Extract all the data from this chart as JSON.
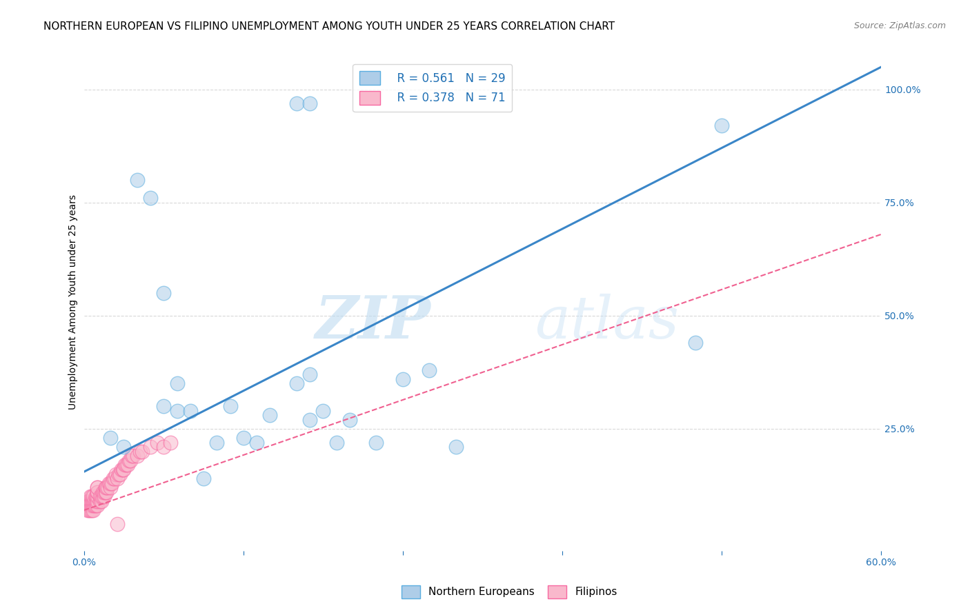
{
  "title": "NORTHERN EUROPEAN VS FILIPINO UNEMPLOYMENT AMONG YOUTH UNDER 25 YEARS CORRELATION CHART",
  "source": "Source: ZipAtlas.com",
  "xlabel": "",
  "ylabel": "Unemployment Among Youth under 25 years",
  "xlim": [
    0.0,
    0.6
  ],
  "ylim": [
    -0.02,
    1.08
  ],
  "xticks": [
    0.0,
    0.12,
    0.24,
    0.36,
    0.48,
    0.6
  ],
  "xticklabels": [
    "0.0%",
    "",
    "",
    "",
    "",
    "60.0%"
  ],
  "yticks_right": [
    0.0,
    0.25,
    0.5,
    0.75,
    1.0
  ],
  "yticklabels_right": [
    "",
    "25.0%",
    "50.0%",
    "75.0%",
    "100.0%"
  ],
  "legend_r_blue": "R = 0.561",
  "legend_n_blue": "N = 29",
  "legend_r_pink": "R = 0.378",
  "legend_n_pink": "N = 71",
  "blue_color": "#aecde8",
  "pink_color": "#f9b8cc",
  "blue_edge_color": "#5baee0",
  "pink_edge_color": "#f768a1",
  "blue_line_color": "#3a86c8",
  "pink_line_color": "#f06090",
  "watermark_zip": "ZIP",
  "watermark_atlas": "atlas",
  "blue_scatter_x": [
    0.02,
    0.03,
    0.16,
    0.17,
    0.04,
    0.05,
    0.06,
    0.06,
    0.07,
    0.07,
    0.08,
    0.09,
    0.1,
    0.11,
    0.12,
    0.13,
    0.14,
    0.16,
    0.17,
    0.17,
    0.18,
    0.19,
    0.2,
    0.22,
    0.24,
    0.26,
    0.28,
    0.46,
    0.48
  ],
  "blue_scatter_y": [
    0.23,
    0.21,
    0.97,
    0.97,
    0.8,
    0.76,
    0.55,
    0.3,
    0.29,
    0.35,
    0.29,
    0.14,
    0.22,
    0.3,
    0.23,
    0.22,
    0.28,
    0.35,
    0.37,
    0.27,
    0.29,
    0.22,
    0.27,
    0.22,
    0.36,
    0.38,
    0.21,
    0.44,
    0.92
  ],
  "pink_scatter_x": [
    0.003,
    0.003,
    0.003,
    0.004,
    0.004,
    0.004,
    0.005,
    0.005,
    0.005,
    0.005,
    0.006,
    0.006,
    0.006,
    0.006,
    0.007,
    0.007,
    0.007,
    0.007,
    0.008,
    0.008,
    0.009,
    0.009,
    0.009,
    0.01,
    0.01,
    0.01,
    0.01,
    0.01,
    0.01,
    0.01,
    0.012,
    0.012,
    0.013,
    0.013,
    0.014,
    0.014,
    0.015,
    0.015,
    0.016,
    0.016,
    0.017,
    0.017,
    0.018,
    0.019,
    0.02,
    0.02,
    0.021,
    0.022,
    0.023,
    0.024,
    0.025,
    0.026,
    0.027,
    0.028,
    0.029,
    0.03,
    0.031,
    0.032,
    0.033,
    0.034,
    0.035,
    0.036,
    0.037,
    0.04,
    0.042,
    0.044,
    0.05,
    0.055,
    0.06,
    0.065,
    0.025
  ],
  "pink_scatter_y": [
    0.07,
    0.08,
    0.09,
    0.07,
    0.08,
    0.09,
    0.07,
    0.08,
    0.09,
    0.1,
    0.07,
    0.08,
    0.09,
    0.1,
    0.07,
    0.08,
    0.09,
    0.1,
    0.08,
    0.09,
    0.08,
    0.09,
    0.1,
    0.08,
    0.09,
    0.1,
    0.11,
    0.12,
    0.11,
    0.12,
    0.09,
    0.1,
    0.09,
    0.1,
    0.1,
    0.11,
    0.1,
    0.11,
    0.11,
    0.12,
    0.11,
    0.12,
    0.12,
    0.13,
    0.12,
    0.13,
    0.13,
    0.14,
    0.14,
    0.15,
    0.14,
    0.15,
    0.15,
    0.16,
    0.16,
    0.16,
    0.17,
    0.17,
    0.17,
    0.18,
    0.18,
    0.19,
    0.19,
    0.19,
    0.2,
    0.2,
    0.21,
    0.22,
    0.21,
    0.22,
    0.04
  ],
  "blue_line_x": [
    0.0,
    0.6
  ],
  "blue_line_y": [
    0.155,
    1.05
  ],
  "pink_line_x": [
    0.0,
    0.6
  ],
  "pink_line_y": [
    0.07,
    0.68
  ],
  "grid_color": "#d8d8d8",
  "background_color": "#ffffff",
  "title_fontsize": 11,
  "axis_label_fontsize": 10,
  "tick_fontsize": 10,
  "legend_fontsize": 12
}
